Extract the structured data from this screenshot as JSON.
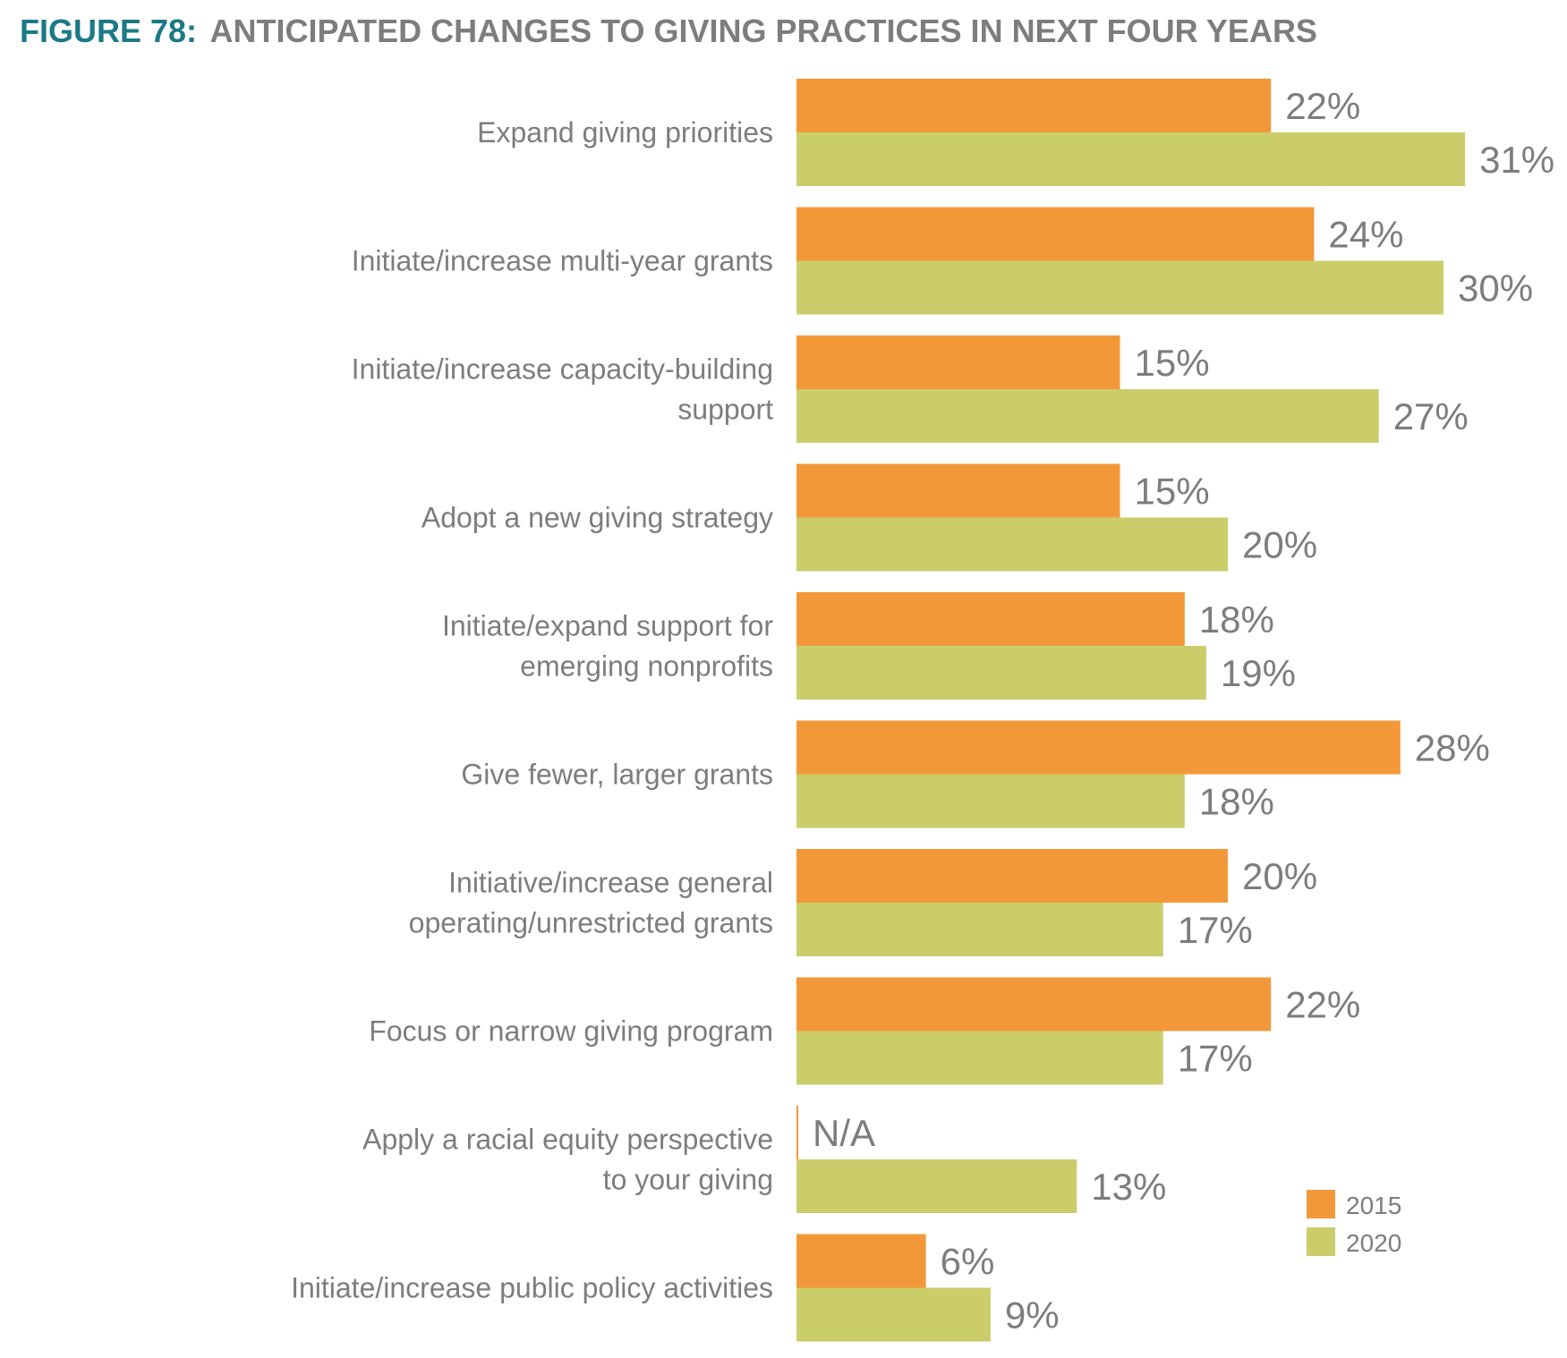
{
  "chart_data": {
    "type": "bar",
    "orientation": "horizontal",
    "title_prefix": "FIGURE 78:",
    "title": "ANTICIPATED CHANGES TO GIVING PRACTICES IN NEXT FOUR YEARS",
    "categories": [
      [
        "Expand giving priorities"
      ],
      [
        "Initiate/increase multi-year grants"
      ],
      [
        "Initiate/increase capacity-building",
        "support"
      ],
      [
        "Adopt a new giving strategy"
      ],
      [
        "Initiate/expand support for",
        "emerging nonprofits"
      ],
      [
        "Give fewer, larger grants"
      ],
      [
        "Initiative/increase general",
        "operating/unrestricted grants"
      ],
      [
        "Focus or narrow giving program"
      ],
      [
        "Apply a racial equity perspective",
        "to your giving"
      ],
      [
        "Initiate/increase public policy activities"
      ]
    ],
    "series": [
      {
        "name": "2015",
        "color": "#f39839",
        "values": [
          22,
          24,
          15,
          15,
          18,
          28,
          20,
          22,
          null,
          6
        ],
        "labels": [
          "22%",
          "24%",
          "15%",
          "15%",
          "18%",
          "28%",
          "20%",
          "22%",
          "N/A",
          "6%"
        ]
      },
      {
        "name": "2020",
        "color": "#cbcd6b",
        "values": [
          31,
          30,
          27,
          20,
          19,
          18,
          17,
          17,
          13,
          9
        ],
        "labels": [
          "31%",
          "30%",
          "27%",
          "20%",
          "19%",
          "18%",
          "17%",
          "17%",
          "13%",
          "9%"
        ]
      }
    ],
    "legend": "bottom-right",
    "grid": false
  }
}
